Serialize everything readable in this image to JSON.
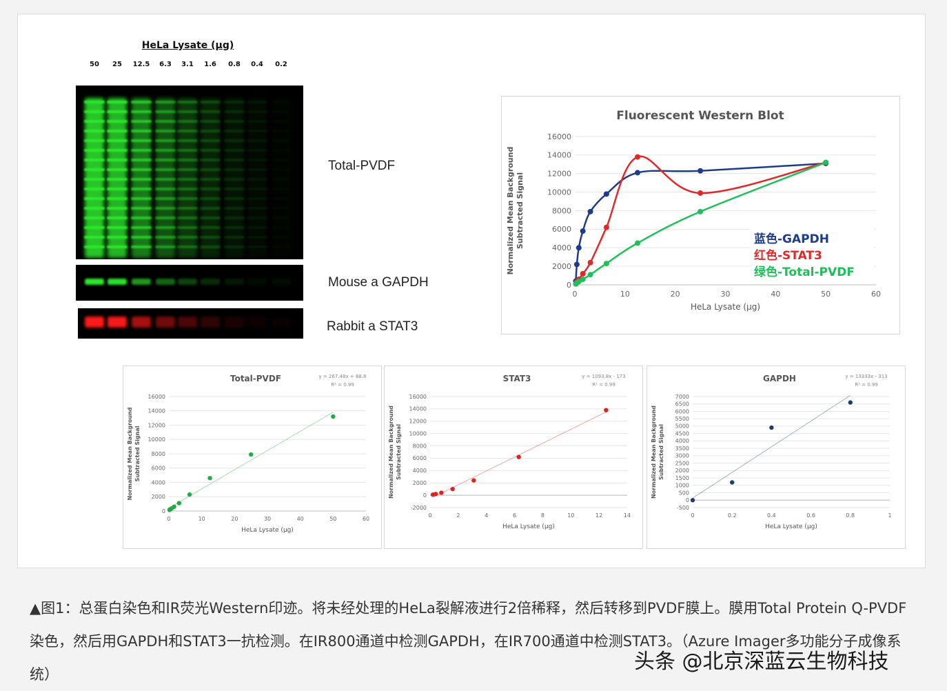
{
  "gel": {
    "title": "HeLa Lysate (μg)",
    "lanes": [
      "50",
      "25",
      "12.5",
      "6.3",
      "3.1",
      "1.6",
      "0.8",
      "0.4",
      "0.2"
    ],
    "labels": {
      "total": "Total-PVDF",
      "gapdh": "Mouse a GAPDH",
      "stat3": "Rabbit a STAT3"
    },
    "colors": {
      "green": "#2ee82e",
      "red": "#ff1a1a"
    }
  },
  "chart_data": [
    {
      "type": "line",
      "title": "Fluorescent Western Blot",
      "xlabel": "HeLa Lysate (μg)",
      "ylabel": "Normalized Mean Background Subtracted Signal",
      "xlim": [
        0,
        60
      ],
      "ylim": [
        0,
        16000
      ],
      "xticks": [
        0,
        10,
        20,
        30,
        40,
        50,
        60
      ],
      "yticks": [
        0,
        2000,
        4000,
        6000,
        8000,
        10000,
        12000,
        14000,
        16000
      ],
      "legend_position": "right",
      "series": [
        {
          "name": "蓝色-GAPDH",
          "color": "#1f3c88",
          "x": [
            0.2,
            0.4,
            0.8,
            1.6,
            3.1,
            6.3,
            12.5,
            25,
            50
          ],
          "y": [
            400,
            2200,
            4000,
            5800,
            7900,
            9800,
            12100,
            12300,
            13100
          ]
        },
        {
          "name": "红色-STAT3",
          "color": "#e02a2a",
          "x": [
            0.2,
            0.4,
            0.8,
            1.6,
            3.1,
            6.3,
            12.5,
            25,
            50
          ],
          "y": [
            100,
            300,
            600,
            1200,
            2400,
            6200,
            13800,
            9900,
            13200
          ]
        },
        {
          "name": "绿色-Total-PVDF",
          "color": "#1fbf5a",
          "x": [
            0.2,
            0.4,
            0.8,
            1.6,
            3.1,
            6.3,
            12.5,
            25,
            50
          ],
          "y": [
            100,
            200,
            350,
            600,
            1100,
            2300,
            4500,
            7900,
            13200
          ]
        }
      ]
    },
    {
      "type": "scatter",
      "title": "Total-PVDF",
      "equation": "y = 267.48x + 88.8",
      "r2": "R² = 0.99",
      "xlabel": "HeLa Lysate (μg)",
      "ylabel": "Normalized Mean Background Subtracted Signal",
      "color": "#22aa44",
      "xlim": [
        0,
        60
      ],
      "ylim": [
        0,
        16000
      ],
      "xticks": [
        0,
        10,
        20,
        30,
        40,
        50,
        60
      ],
      "yticks": [
        0,
        2000,
        4000,
        6000,
        8000,
        10000,
        12000,
        14000,
        16000
      ],
      "x": [
        0.2,
        0.4,
        0.8,
        1.6,
        3.1,
        6.3,
        12.5,
        25,
        50
      ],
      "y": [
        150,
        250,
        350,
        600,
        1100,
        2300,
        4600,
        7900,
        13200
      ]
    },
    {
      "type": "scatter",
      "title": "STAT3",
      "equation": "y = 1093.8x - 173",
      "r2": "R² = 0.99",
      "xlabel": "HeLa Lysate (μg)",
      "ylabel": "Normalized Mean Background Subtracted Signal",
      "color": "#dd2222",
      "xlim": [
        0,
        14
      ],
      "ylim": [
        -2000,
        16000
      ],
      "xticks": [
        0,
        2,
        4,
        6,
        8,
        10,
        12,
        14
      ],
      "yticks": [
        -2000,
        0,
        2000,
        4000,
        6000,
        8000,
        10000,
        12000,
        14000,
        16000
      ],
      "x": [
        0.2,
        0.4,
        0.8,
        1.6,
        3.1,
        6.3,
        12.5
      ],
      "y": [
        100,
        200,
        400,
        1000,
        2400,
        6200,
        13800
      ]
    },
    {
      "type": "scatter",
      "title": "GAPDH",
      "equation": "y = 13333x - 313",
      "r2": "R² = 0.99",
      "xlabel": "HeLa Lysate (μg)",
      "ylabel": "Normalized Mean Background Subtracted Signal",
      "color": "#1f3c6e",
      "xlim": [
        0,
        1
      ],
      "ylim": [
        -500,
        7000
      ],
      "xticks": [
        0,
        0.2,
        0.4,
        0.6,
        0.8,
        1
      ],
      "yticks": [
        -500,
        0,
        500,
        1000,
        1500,
        2000,
        2500,
        3000,
        3500,
        4000,
        4500,
        5000,
        5500,
        6000,
        6500,
        7000
      ],
      "x": [
        0,
        0.2,
        0.4,
        0.8
      ],
      "y": [
        0,
        1200,
        4900,
        6600
      ]
    }
  ],
  "caption": {
    "text": "▲图1：总蛋白染色和IR荧光Western印迹。将未经处理的HeLa裂解液进行2倍稀释，然后转移到PVDF膜上。膜用Total Protein Q-PVDF染色，然后用GAPDH和STAT3一抗检测。在IR800通道中检测GAPDH，在IR700通道中检测STAT3。（Azure Imager多功能分子成像系统）"
  },
  "watermark": "头条 @北京深蓝云生物科技"
}
